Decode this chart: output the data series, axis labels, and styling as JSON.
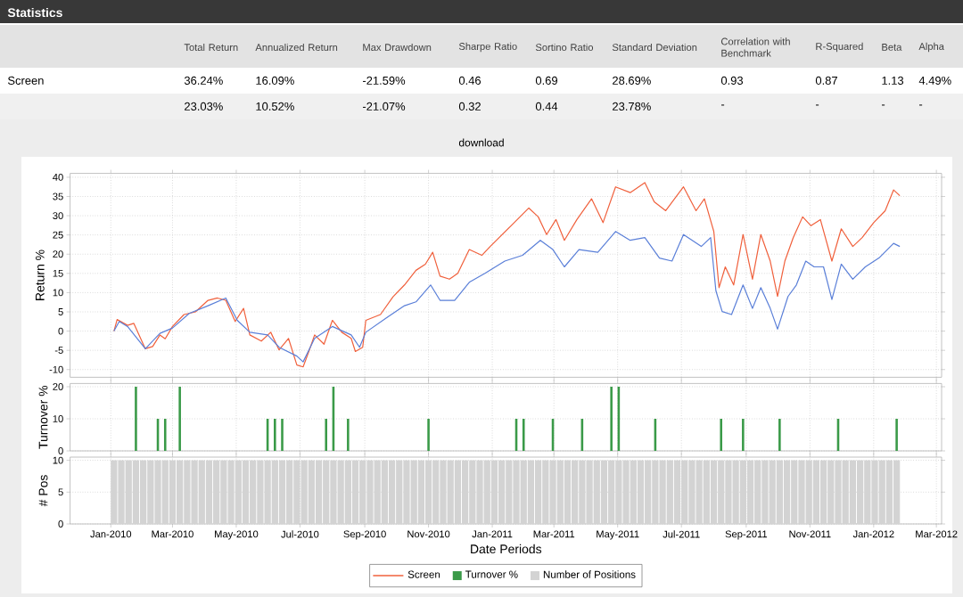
{
  "chart_data": [
    {
      "type": "other",
      "title": "Statistics",
      "categories": [
        "Total Return",
        "Annualized Return",
        "Max Drawdown",
        "Sharpe Ratio",
        "Sortino Ratio",
        "Standard Deviation",
        "Correlation with Benchmark",
        "R-Squared",
        "Beta",
        "Alpha"
      ],
      "y_categories": [
        "Screen",
        null
      ],
      "cell_labels": [
        [
          "36.24%",
          "16.09%",
          "-21.59%",
          "0.46",
          "0.69",
          "28.69%",
          "0.93",
          "0.87",
          "1.13",
          "4.49%"
        ],
        [
          "23.03%",
          "10.52%",
          "-21.07%",
          "0.32",
          "0.44",
          "23.78%",
          "-",
          "-",
          "-",
          "-"
        ]
      ],
      "annotations": [
        "download"
      ]
    },
    {
      "type": "line",
      "ylabel": "Return %",
      "xlim": [
        "2009-11-23",
        "2012-03-06"
      ],
      "ylim": [
        -12,
        41
      ],
      "yticks": [
        -10,
        -5,
        0,
        5,
        10,
        15,
        20,
        25,
        30,
        35,
        40
      ],
      "grid": true,
      "tick_labels": "y",
      "xticks": [
        {
          "value": "2010-01-01",
          "label": null
        },
        {
          "value": "2010-03-01",
          "label": null
        },
        {
          "value": "2010-05-01",
          "label": null
        },
        {
          "value": "2010-07-01",
          "label": null
        },
        {
          "value": "2010-09-01",
          "label": null
        },
        {
          "value": "2010-11-01",
          "label": null
        },
        {
          "value": "2011-01-01",
          "label": null
        },
        {
          "value": "2011-03-01",
          "label": null
        },
        {
          "value": "2011-05-01",
          "label": null
        },
        {
          "value": "2011-07-01",
          "label": null
        },
        {
          "value": "2011-09-01",
          "label": null
        },
        {
          "value": "2011-11-01",
          "label": null
        },
        {
          "value": "2012-01-01",
          "label": null
        },
        {
          "value": "2012-03-01",
          "label": null
        }
      ],
      "series": [
        {
          "name": "Screen",
          "color": "#f0603c",
          "x": [
            "2010-01-04",
            "2010-01-07",
            "2010-01-17",
            "2010-01-23",
            "2010-02-03",
            "2010-02-10",
            "2010-02-17",
            "2010-02-22",
            "2010-03-01",
            "2010-03-12",
            "2010-03-23",
            "2010-04-04",
            "2010-04-13",
            "2010-04-21",
            "2010-04-30",
            "2010-05-08",
            "2010-05-14",
            "2010-05-25",
            "2010-06-03",
            "2010-06-11",
            "2010-06-20",
            "2010-06-28",
            "2010-07-04",
            "2010-07-10",
            "2010-07-15",
            "2010-07-24",
            "2010-08-01",
            "2010-08-10",
            "2010-08-19",
            "2010-08-23",
            "2010-08-30",
            "2010-09-02",
            "2010-09-16",
            "2010-09-28",
            "2010-10-09",
            "2010-10-20",
            "2010-10-29",
            "2010-11-05",
            "2010-11-12",
            "2010-11-21",
            "2010-11-29",
            "2010-12-10",
            "2010-12-22",
            "2010-12-30",
            "2011-01-19",
            "2011-02-05",
            "2011-02-14",
            "2011-02-22",
            "2011-03-03",
            "2011-03-11",
            "2011-03-23",
            "2011-04-06",
            "2011-04-17",
            "2011-04-29",
            "2011-05-13",
            "2011-05-27",
            "2011-06-05",
            "2011-06-16",
            "2011-07-03",
            "2011-07-15",
            "2011-07-23",
            "2011-08-01",
            "2011-08-06",
            "2011-08-12",
            "2011-08-20",
            "2011-08-29",
            "2011-09-07",
            "2011-09-15",
            "2011-09-24",
            "2011-10-01",
            "2011-10-08",
            "2011-10-16",
            "2011-10-25",
            "2011-11-02",
            "2011-11-11",
            "2011-11-22",
            "2011-12-01",
            "2011-12-12",
            "2011-12-21",
            "2012-01-01",
            "2012-01-12",
            "2012-01-20",
            "2012-01-26"
          ],
          "values": [
            0,
            3,
            1.5,
            2,
            -4.6,
            -4,
            -1,
            -2,
            1.2,
            4.3,
            5,
            8,
            8.6,
            8,
            2.5,
            5.9,
            -1,
            -2.6,
            -0.3,
            -4.9,
            -1.9,
            -8.8,
            -9.3,
            -4.9,
            -1,
            -3.4,
            2.8,
            -0.3,
            -1.9,
            -5.3,
            -4.2,
            2.8,
            4.3,
            8.9,
            12,
            15.8,
            17.4,
            20.5,
            14.3,
            13.5,
            15,
            21.2,
            19.7,
            22,
            27.4,
            32,
            29.7,
            25.1,
            29,
            23.6,
            29,
            34.4,
            28.2,
            37.5,
            36,
            38.6,
            33.6,
            31.3,
            37.5,
            31.3,
            34.4,
            25.9,
            11.3,
            16.7,
            12,
            25.1,
            13.5,
            25.1,
            18.2,
            9,
            18.2,
            24.3,
            29.7,
            27.4,
            29,
            18.2,
            26.6,
            22,
            24.3,
            28.2,
            31.3,
            36.7,
            35.2
          ]
        },
        {
          "color": "#5a7fd8",
          "x": [
            "2010-01-04",
            "2010-01-09",
            "2010-01-17",
            "2010-02-03",
            "2010-02-17",
            "2010-03-01",
            "2010-03-17",
            "2010-04-04",
            "2010-04-21",
            "2010-05-02",
            "2010-05-14",
            "2010-05-31",
            "2010-06-11",
            "2010-06-28",
            "2010-07-04",
            "2010-07-15",
            "2010-08-01",
            "2010-08-19",
            "2010-08-27",
            "2010-09-02",
            "2010-09-22",
            "2010-10-09",
            "2010-10-20",
            "2010-11-03",
            "2010-11-12",
            "2010-11-26",
            "2010-12-10",
            "2010-12-25",
            "2011-01-13",
            "2011-01-30",
            "2011-02-16",
            "2011-02-28",
            "2011-03-11",
            "2011-03-25",
            "2011-04-12",
            "2011-04-29",
            "2011-05-13",
            "2011-05-27",
            "2011-06-10",
            "2011-06-22",
            "2011-07-03",
            "2011-07-20",
            "2011-07-29",
            "2011-08-03",
            "2011-08-09",
            "2011-08-18",
            "2011-08-29",
            "2011-09-07",
            "2011-09-15",
            "2011-09-24",
            "2011-10-01",
            "2011-10-11",
            "2011-10-19",
            "2011-10-28",
            "2011-11-05",
            "2011-11-14",
            "2011-11-22",
            "2011-12-01",
            "2011-12-12",
            "2011-12-24",
            "2012-01-06",
            "2012-01-20",
            "2012-01-26"
          ],
          "values": [
            0,
            2.5,
            1.2,
            -4.6,
            -0.6,
            0.8,
            4.6,
            6.6,
            8.6,
            2.8,
            -0.3,
            -1,
            -4.2,
            -6.5,
            -8,
            -1.9,
            1.2,
            -1,
            -4.2,
            -0.3,
            3.5,
            6.6,
            7.6,
            12,
            8,
            8,
            12.7,
            15,
            18.2,
            19.7,
            23.6,
            21.2,
            16.7,
            21.2,
            20.5,
            25.9,
            23.6,
            24.3,
            19,
            18.2,
            25.1,
            22,
            24.3,
            10.5,
            5.1,
            4.3,
            12,
            5.9,
            11.3,
            5.9,
            0.5,
            9,
            12,
            18.2,
            16.7,
            16.7,
            8.2,
            17.4,
            13.5,
            16.7,
            19,
            22.8,
            22
          ]
        }
      ]
    },
    {
      "type": "bar",
      "ylabel": "Turnover %",
      "xlim": [
        "2009-11-23",
        "2012-03-06"
      ],
      "ylim": [
        0,
        21
      ],
      "yticks": [
        0,
        10,
        20
      ],
      "grid": true,
      "tick_labels": "y",
      "xticks": [
        {
          "value": "2010-01-01",
          "label": null
        },
        {
          "value": "2010-03-01",
          "label": null
        },
        {
          "value": "2010-05-01",
          "label": null
        },
        {
          "value": "2010-07-01",
          "label": null
        },
        {
          "value": "2010-09-01",
          "label": null
        },
        {
          "value": "2010-11-01",
          "label": null
        },
        {
          "value": "2011-01-01",
          "label": null
        },
        {
          "value": "2011-03-01",
          "label": null
        },
        {
          "value": "2011-05-01",
          "label": null
        },
        {
          "value": "2011-07-01",
          "label": null
        },
        {
          "value": "2011-09-01",
          "label": null
        },
        {
          "value": "2011-11-01",
          "label": null
        },
        {
          "value": "2012-01-01",
          "label": null
        },
        {
          "value": "2012-03-01",
          "label": null
        }
      ],
      "series": [
        {
          "name": "Turnover %",
          "color": "#3a9a48",
          "x": [
            "2010-01-25",
            "2010-02-15",
            "2010-02-22",
            "2010-03-08",
            "2010-05-31",
            "2010-06-07",
            "2010-06-14",
            "2010-07-26",
            "2010-08-02",
            "2010-08-16",
            "2010-11-01",
            "2011-01-24",
            "2011-01-31",
            "2011-02-28",
            "2011-03-28",
            "2011-04-25",
            "2011-05-02",
            "2011-06-06",
            "2011-08-08",
            "2011-08-29",
            "2011-10-03",
            "2011-11-28",
            "2012-01-23"
          ],
          "values": [
            20,
            10,
            10,
            20,
            10,
            10,
            10,
            10,
            20,
            10,
            10,
            10,
            10,
            10,
            10,
            20,
            20,
            10,
            10,
            10,
            10,
            10,
            10
          ]
        }
      ]
    },
    {
      "type": "bar",
      "ylabel": "# Pos",
      "xlabel": "Date Periods",
      "xlim": [
        "2009-11-23",
        "2012-03-06"
      ],
      "ylim": [
        0,
        10.5
      ],
      "yticks": [
        0,
        5,
        10
      ],
      "grid": true,
      "legend": "bottom",
      "xticks": [
        {
          "value": "2010-01-01",
          "label": "Jan-2010"
        },
        {
          "value": "2010-03-01",
          "label": "Mar-2010"
        },
        {
          "value": "2010-05-01",
          "label": "May-2010"
        },
        {
          "value": "2010-07-01",
          "label": "Jul-2010"
        },
        {
          "value": "2010-09-01",
          "label": "Sep-2010"
        },
        {
          "value": "2010-11-01",
          "label": "Nov-2010"
        },
        {
          "value": "2011-01-01",
          "label": "Jan-2011"
        },
        {
          "value": "2011-03-01",
          "label": "Mar-2011"
        },
        {
          "value": "2011-05-01",
          "label": "May-2011"
        },
        {
          "value": "2011-07-01",
          "label": "Jul-2011"
        },
        {
          "value": "2011-09-01",
          "label": "Sep-2011"
        },
        {
          "value": "2011-11-01",
          "label": "Nov-2011"
        },
        {
          "value": "2012-01-01",
          "label": "Jan-2012"
        },
        {
          "value": "2012-03-01",
          "label": "Mar-2012"
        }
      ],
      "series": [
        {
          "name": "Number of Positions",
          "color": "#d3d3d3",
          "x": [
            "2010-01-04",
            "2010-01-11",
            "2010-01-18",
            "2010-01-25",
            "2010-02-01",
            "2010-02-08",
            "2010-02-15",
            "2010-02-22",
            "2010-03-01",
            "2010-03-08",
            "2010-03-15",
            "2010-03-22",
            "2010-03-29",
            "2010-04-05",
            "2010-04-12",
            "2010-04-19",
            "2010-04-26",
            "2010-05-03",
            "2010-05-10",
            "2010-05-17",
            "2010-05-24",
            "2010-05-31",
            "2010-06-07",
            "2010-06-14",
            "2010-06-21",
            "2010-06-28",
            "2010-07-05",
            "2010-07-12",
            "2010-07-19",
            "2010-07-26",
            "2010-08-02",
            "2010-08-09",
            "2010-08-16",
            "2010-08-23",
            "2010-08-30",
            "2010-09-06",
            "2010-09-13",
            "2010-09-20",
            "2010-09-27",
            "2010-10-04",
            "2010-10-11",
            "2010-10-18",
            "2010-10-25",
            "2010-11-01",
            "2010-11-08",
            "2010-11-15",
            "2010-11-22",
            "2010-11-29",
            "2010-12-06",
            "2010-12-13",
            "2010-12-20",
            "2010-12-27",
            "2011-01-03",
            "2011-01-10",
            "2011-01-17",
            "2011-01-24",
            "2011-01-31",
            "2011-02-07",
            "2011-02-14",
            "2011-02-21",
            "2011-02-28",
            "2011-03-07",
            "2011-03-14",
            "2011-03-21",
            "2011-03-28",
            "2011-04-04",
            "2011-04-11",
            "2011-04-18",
            "2011-04-25",
            "2011-05-02",
            "2011-05-09",
            "2011-05-16",
            "2011-05-23",
            "2011-05-30",
            "2011-06-06",
            "2011-06-13",
            "2011-06-20",
            "2011-06-27",
            "2011-07-04",
            "2011-07-11",
            "2011-07-18",
            "2011-07-25",
            "2011-08-01",
            "2011-08-08",
            "2011-08-15",
            "2011-08-22",
            "2011-08-29",
            "2011-09-05",
            "2011-09-12",
            "2011-09-19",
            "2011-09-26",
            "2011-10-03",
            "2011-10-10",
            "2011-10-17",
            "2011-10-24",
            "2011-10-31",
            "2011-11-07",
            "2011-11-14",
            "2011-11-21",
            "2011-11-28",
            "2011-12-05",
            "2011-12-12",
            "2011-12-19",
            "2011-12-26",
            "2012-01-02",
            "2012-01-09",
            "2012-01-16",
            "2012-01-23"
          ],
          "values": [
            10,
            10,
            10,
            10,
            10,
            10,
            10,
            10,
            10,
            10,
            10,
            10,
            10,
            10,
            10,
            10,
            10,
            10,
            10,
            10,
            10,
            10,
            10,
            10,
            10,
            10,
            10,
            10,
            10,
            10,
            10,
            10,
            10,
            10,
            10,
            10,
            10,
            10,
            10,
            10,
            10,
            10,
            10,
            10,
            10,
            10,
            10,
            10,
            10,
            10,
            10,
            10,
            10,
            10,
            10,
            10,
            10,
            10,
            10,
            10,
            10,
            10,
            10,
            10,
            10,
            10,
            10,
            10,
            10,
            10,
            10,
            10,
            10,
            10,
            10,
            10,
            10,
            10,
            10,
            10,
            10,
            10,
            10,
            10,
            10,
            10,
            10,
            10,
            10,
            10,
            10,
            10,
            10,
            10,
            10,
            10,
            10,
            10,
            10,
            10,
            10,
            10,
            10,
            10,
            10,
            10,
            10,
            10
          ]
        }
      ]
    }
  ]
}
